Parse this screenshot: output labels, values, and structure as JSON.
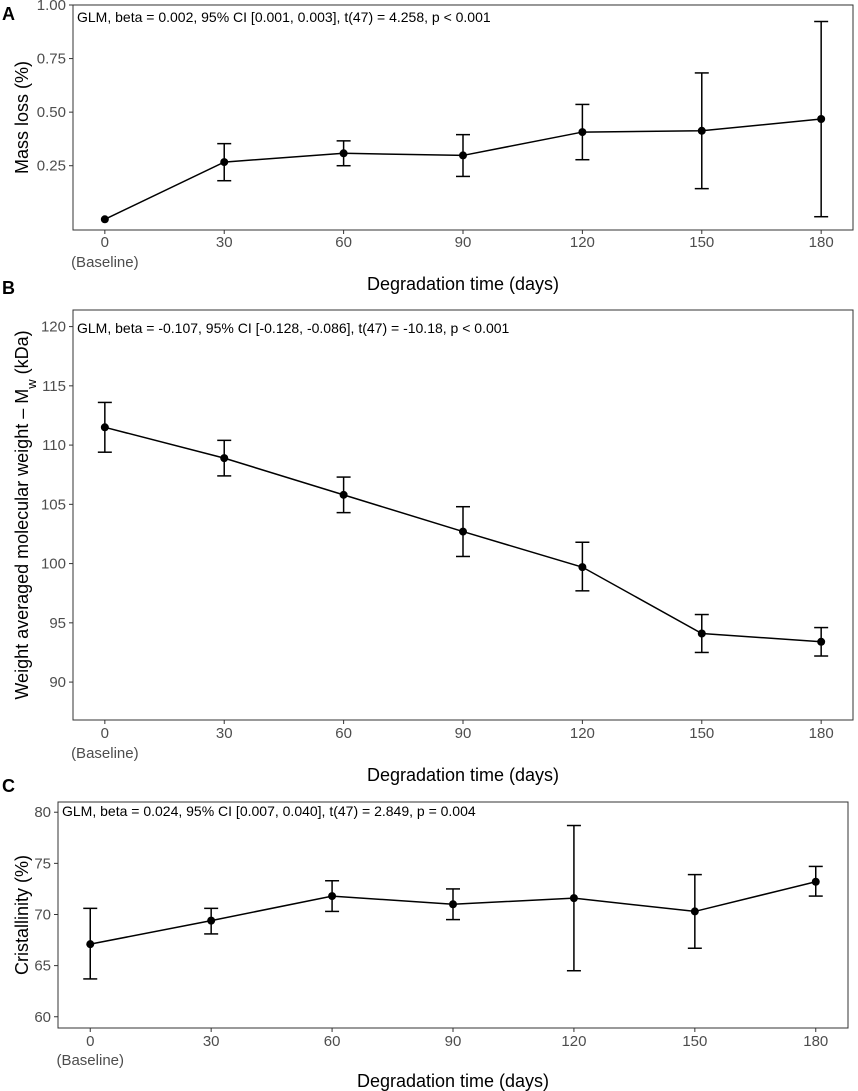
{
  "chart_data": [
    {
      "type": "line",
      "panel_label": "A",
      "annotation": "GLM, beta = 0.002, 95% CI [0.001, 0.003], t(47) = 4.258, p < 0.001",
      "ylabel": "Mass loss (%)",
      "xlabel": "Degradation time (days)",
      "x": [
        0,
        30,
        60,
        90,
        120,
        150,
        180
      ],
      "x_tick_labels": [
        "0",
        "30",
        "60",
        "90",
        "120",
        "150",
        "180"
      ],
      "x_tick_sublabel": "(Baseline)",
      "y": [
        0.0,
        0.267,
        0.308,
        0.298,
        0.407,
        0.413,
        0.468
      ],
      "y_lower": [
        0.0,
        0.18,
        0.25,
        0.2,
        0.278,
        0.143,
        0.012
      ],
      "y_upper": [
        0.0,
        0.353,
        0.366,
        0.395,
        0.536,
        0.683,
        0.923
      ],
      "y_ticks": [
        0.25,
        0.5,
        0.75,
        1.0
      ],
      "y_tick_labels": [
        "0.25",
        "0.50",
        "0.75",
        "1.00"
      ],
      "xlim": [
        -8,
        188
      ],
      "ylim": [
        -0.05,
        1.0
      ],
      "grid": true,
      "legend": "none"
    },
    {
      "type": "line",
      "panel_label": "B",
      "annotation": "GLM, beta = -0.107, 95% CI [-0.128, -0.086], t(47) = -10.18, p < 0.001",
      "ylabel": "Weight averaged molecular weight – M",
      "ylabel_subscript": "w",
      "ylabel_suffix": " (kDa)",
      "xlabel": "Degradation time (days)",
      "x": [
        0,
        30,
        60,
        90,
        120,
        150,
        180
      ],
      "x_tick_labels": [
        "0",
        "30",
        "60",
        "90",
        "120",
        "150",
        "180"
      ],
      "x_tick_sublabel": "(Baseline)",
      "y": [
        111.5,
        108.9,
        105.8,
        102.7,
        99.7,
        94.1,
        93.4
      ],
      "y_lower": [
        109.4,
        107.4,
        104.3,
        100.6,
        97.7,
        92.5,
        92.2
      ],
      "y_upper": [
        113.6,
        110.4,
        107.3,
        104.8,
        101.8,
        95.7,
        94.6
      ],
      "y_ticks": [
        90,
        95,
        100,
        105,
        110,
        115,
        120
      ],
      "y_tick_labels": [
        "90",
        "95",
        "100",
        "105",
        "110",
        "115",
        "120"
      ],
      "xlim": [
        -8,
        188
      ],
      "ylim": [
        86.8,
        121.4
      ],
      "grid": true,
      "legend": "none"
    },
    {
      "type": "line",
      "panel_label": "C",
      "annotation": "GLM, beta = 0.024, 95% CI [0.007, 0.040], t(47) = 2.849, p = 0.004",
      "ylabel": "Cristallinity (%)",
      "xlabel": "Degradation time (days)",
      "x": [
        0,
        30,
        60,
        90,
        120,
        150,
        180
      ],
      "x_tick_labels": [
        "0",
        "30",
        "60",
        "90",
        "120",
        "150",
        "180"
      ],
      "x_tick_sublabel": "(Baseline)",
      "y": [
        67.1,
        69.4,
        71.8,
        71.0,
        71.6,
        70.3,
        73.2
      ],
      "y_lower": [
        63.7,
        68.1,
        70.3,
        69.5,
        64.5,
        66.7,
        71.8
      ],
      "y_upper": [
        70.6,
        70.6,
        73.3,
        72.5,
        78.7,
        73.9,
        74.7
      ],
      "y_ticks": [
        60,
        65,
        70,
        75,
        80
      ],
      "y_tick_labels": [
        "60",
        "65",
        "70",
        "75",
        "80"
      ],
      "xlim": [
        -8,
        188
      ],
      "ylim": [
        58.9,
        81.0
      ],
      "grid": true,
      "legend": "none"
    }
  ]
}
